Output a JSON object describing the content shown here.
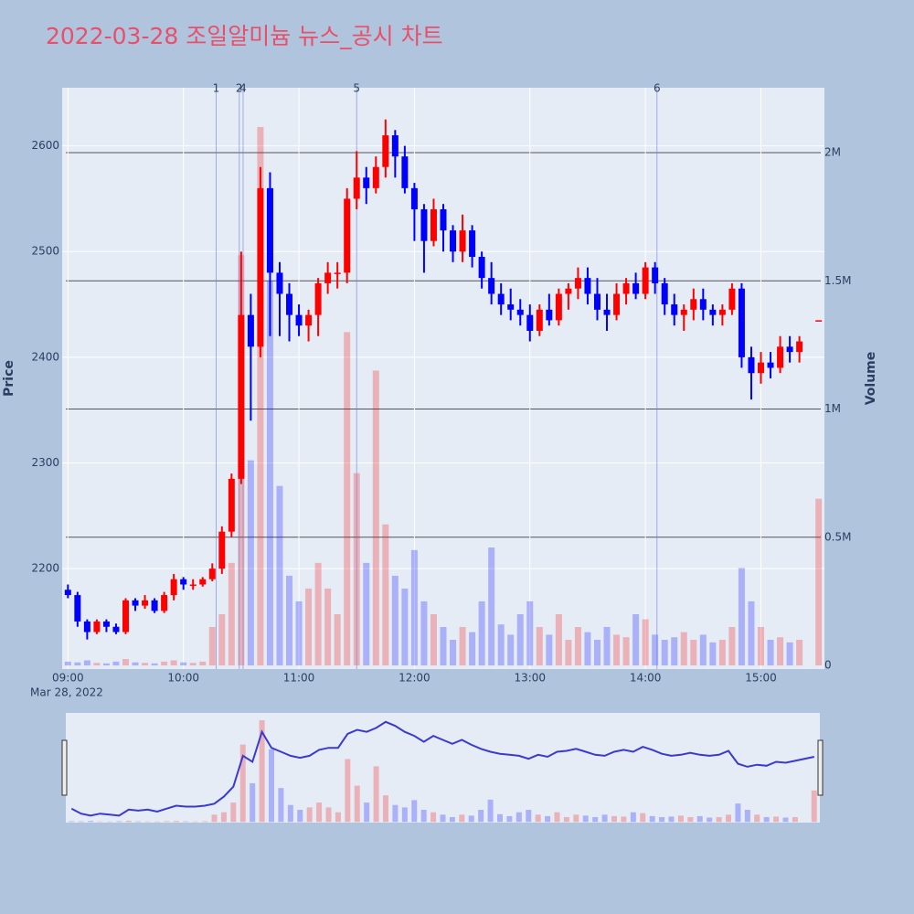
{
  "chart_data": {
    "type": "candlestick",
    "title": "2022-03-28 조일알미늄 뉴스_공시 차트",
    "y_label": "Price",
    "y2_label": "Volume",
    "x_date_label": "Mar 28, 2022",
    "increasing_color": "#ff0000",
    "decreasing_color": "#0000ff",
    "x": [
      "2022-03-28 09:00",
      "2022-03-28 09:05",
      "2022-03-28 09:10",
      "2022-03-28 09:15",
      "2022-03-28 09:20",
      "2022-03-28 09:25",
      "2022-03-28 09:30",
      "2022-03-28 09:35",
      "2022-03-28 09:40",
      "2022-03-28 09:45",
      "2022-03-28 09:50",
      "2022-03-28 09:55",
      "2022-03-28 10:00",
      "2022-03-28 10:05",
      "2022-03-28 10:10",
      "2022-03-28 10:15",
      "2022-03-28 10:20",
      "2022-03-28 10:25",
      "2022-03-28 10:30",
      "2022-03-28 10:35",
      "2022-03-28 10:40",
      "2022-03-28 10:45",
      "2022-03-28 10:50",
      "2022-03-28 10:55",
      "2022-03-28 11:00",
      "2022-03-28 11:05",
      "2022-03-28 11:10",
      "2022-03-28 11:15",
      "2022-03-28 11:20",
      "2022-03-28 11:25",
      "2022-03-28 11:30",
      "2022-03-28 11:35",
      "2022-03-28 11:40",
      "2022-03-28 11:45",
      "2022-03-28 11:50",
      "2022-03-28 11:55",
      "2022-03-28 12:00",
      "2022-03-28 12:05",
      "2022-03-28 12:10",
      "2022-03-28 12:15",
      "2022-03-28 12:20",
      "2022-03-28 12:25",
      "2022-03-28 12:30",
      "2022-03-28 12:35",
      "2022-03-28 12:40",
      "2022-03-28 12:45",
      "2022-03-28 12:50",
      "2022-03-28 12:55",
      "2022-03-28 13:00",
      "2022-03-28 13:05",
      "2022-03-28 13:10",
      "2022-03-28 13:15",
      "2022-03-28 13:20",
      "2022-03-28 13:25",
      "2022-03-28 13:30",
      "2022-03-28 13:35",
      "2022-03-28 13:40",
      "2022-03-28 13:45",
      "2022-03-28 13:50",
      "2022-03-28 13:55",
      "2022-03-28 14:00",
      "2022-03-28 14:05",
      "2022-03-28 14:10",
      "2022-03-28 14:15",
      "2022-03-28 14:20",
      "2022-03-28 14:25",
      "2022-03-28 14:30",
      "2022-03-28 14:35",
      "2022-03-28 14:40",
      "2022-03-28 14:45",
      "2022-03-28 14:50",
      "2022-03-28 14:55",
      "2022-03-28 15:00",
      "2022-03-28 15:05",
      "2022-03-28 15:10",
      "2022-03-28 15:15",
      "2022-03-28 15:20",
      "2022-03-28 15:30"
    ],
    "open": [
      2180,
      2175,
      2150,
      2140,
      2150,
      2145,
      2140,
      2170,
      2165,
      2170,
      2160,
      2175,
      2190,
      2185,
      2185,
      2190,
      2200,
      2235,
      2285,
      2440,
      2410,
      2560,
      2480,
      2460,
      2440,
      2430,
      2440,
      2470,
      2480,
      2480,
      2550,
      2570,
      2560,
      2580,
      2610,
      2590,
      2560,
      2540,
      2510,
      2540,
      2520,
      2500,
      2520,
      2495,
      2475,
      2460,
      2450,
      2445,
      2440,
      2425,
      2445,
      2435,
      2460,
      2465,
      2475,
      2460,
      2445,
      2440,
      2460,
      2470,
      2460,
      2485,
      2470,
      2450,
      2440,
      2445,
      2455,
      2445,
      2440,
      2445,
      2465,
      2400,
      2385,
      2395,
      2390,
      2410,
      2405,
      2435
    ],
    "high": [
      2185,
      2178,
      2152,
      2152,
      2152,
      2148,
      2172,
      2172,
      2175,
      2172,
      2178,
      2195,
      2192,
      2190,
      2192,
      2205,
      2240,
      2290,
      2500,
      2460,
      2580,
      2575,
      2490,
      2470,
      2450,
      2445,
      2475,
      2490,
      2490,
      2560,
      2595,
      2580,
      2590,
      2625,
      2615,
      2600,
      2565,
      2545,
      2550,
      2545,
      2525,
      2535,
      2525,
      2500,
      2490,
      2470,
      2465,
      2455,
      2450,
      2450,
      2460,
      2465,
      2470,
      2485,
      2485,
      2475,
      2460,
      2470,
      2475,
      2480,
      2490,
      2490,
      2475,
      2460,
      2450,
      2465,
      2465,
      2450,
      2450,
      2470,
      2470,
      2410,
      2405,
      2405,
      2420,
      2420,
      2420,
      2435
    ],
    "low": [
      2172,
      2145,
      2133,
      2138,
      2140,
      2138,
      2138,
      2160,
      2162,
      2158,
      2158,
      2170,
      2180,
      2180,
      2183,
      2188,
      2195,
      2230,
      2280,
      2340,
      2400,
      2420,
      2420,
      2415,
      2420,
      2415,
      2420,
      2460,
      2465,
      2470,
      2540,
      2545,
      2555,
      2570,
      2570,
      2555,
      2510,
      2480,
      2505,
      2500,
      2490,
      2490,
      2485,
      2465,
      2450,
      2440,
      2435,
      2430,
      2415,
      2420,
      2430,
      2430,
      2445,
      2455,
      2450,
      2435,
      2425,
      2435,
      2450,
      2455,
      2455,
      2460,
      2440,
      2430,
      2425,
      2435,
      2435,
      2430,
      2430,
      2440,
      2390,
      2360,
      2375,
      2380,
      2385,
      2395,
      2395,
      2435
    ],
    "close": [
      2175,
      2150,
      2140,
      2150,
      2145,
      2140,
      2170,
      2165,
      2170,
      2160,
      2175,
      2190,
      2185,
      2185,
      2190,
      2200,
      2235,
      2285,
      2440,
      2410,
      2560,
      2480,
      2460,
      2440,
      2430,
      2440,
      2470,
      2480,
      2480,
      2550,
      2570,
      2560,
      2580,
      2610,
      2590,
      2560,
      2540,
      2510,
      2540,
      2520,
      2500,
      2520,
      2495,
      2475,
      2460,
      2450,
      2445,
      2440,
      2425,
      2445,
      2435,
      2460,
      2465,
      2475,
      2460,
      2445,
      2440,
      2460,
      2470,
      2460,
      2485,
      2470,
      2450,
      2440,
      2445,
      2455,
      2445,
      2440,
      2445,
      2465,
      2400,
      2385,
      2395,
      2390,
      2410,
      2405,
      2415,
      2435
    ],
    "volume": [
      15000,
      12000,
      20000,
      10000,
      8000,
      15000,
      25000,
      12000,
      10000,
      8000,
      15000,
      20000,
      12000,
      10000,
      15000,
      150000,
      200000,
      400000,
      1600000,
      800000,
      2100000,
      1500000,
      700000,
      350000,
      250000,
      300000,
      400000,
      300000,
      200000,
      1300000,
      750000,
      400000,
      1150000,
      550000,
      350000,
      300000,
      450000,
      250000,
      200000,
      150000,
      100000,
      150000,
      130000,
      250000,
      460000,
      160000,
      120000,
      200000,
      250000,
      150000,
      120000,
      200000,
      100000,
      150000,
      130000,
      100000,
      150000,
      120000,
      110000,
      200000,
      180000,
      120000,
      100000,
      110000,
      130000,
      100000,
      120000,
      90000,
      100000,
      150000,
      380000,
      250000,
      150000,
      100000,
      110000,
      90000,
      100000,
      650000
    ],
    "xlim": [
      "2022-03-28 08:57",
      "2022-03-28 15:33"
    ],
    "xticks": [
      {
        "value": "2022-03-28 09:00",
        "label": "09:00"
      },
      {
        "value": "2022-03-28 10:00",
        "label": "10:00"
      },
      {
        "value": "2022-03-28 11:00",
        "label": "11:00"
      },
      {
        "value": "2022-03-28 12:00",
        "label": "12:00"
      },
      {
        "value": "2022-03-28 13:00",
        "label": "13:00"
      },
      {
        "value": "2022-03-28 14:00",
        "label": "14:00"
      },
      {
        "value": "2022-03-28 15:00",
        "label": "15:00"
      }
    ],
    "ylim": [
      2105,
      2655
    ],
    "yticks": [
      2200,
      2300,
      2400,
      2500,
      2600
    ],
    "y2lim": [
      -14000,
      2253000
    ],
    "y2ticks": [
      0,
      {
        "value": 500000,
        "label": "0.5M"
      },
      {
        "value": 1000000,
        "label": "1M"
      },
      {
        "value": 1500000,
        "label": "1.5M"
      },
      {
        "value": 2000000,
        "label": "2M"
      }
    ],
    "news": [
      {
        "x": "2022-03-28 10:17",
        "label": "1"
      },
      {
        "x": "2022-03-28 10:29",
        "label": "2"
      },
      {
        "x": "2022-03-28 10:31",
        "label": "4"
      },
      {
        "x": "2022-03-28 11:30",
        "label": "5"
      },
      {
        "x": "2022-03-28 14:06",
        "label": "6"
      }
    ],
    "grid": true
  }
}
